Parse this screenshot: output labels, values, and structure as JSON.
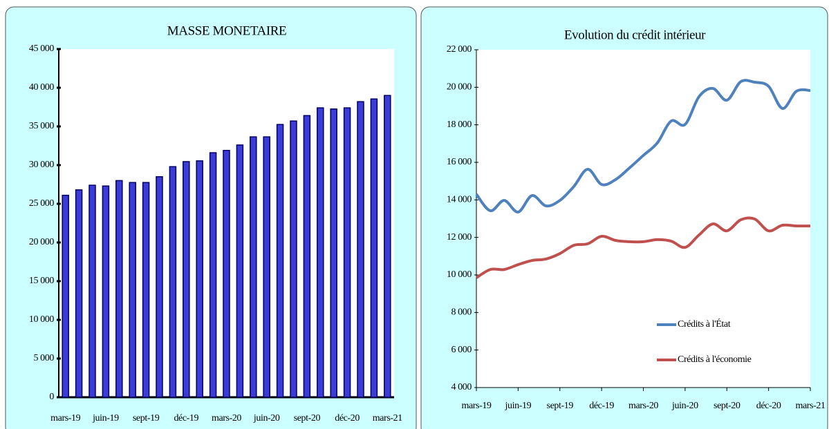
{
  "chart_data": [
    {
      "type": "bar",
      "title": "MASSE MONETAIRE",
      "categories": [
        "mars-19",
        null,
        null,
        "juin-19",
        null,
        null,
        "sept-19",
        null,
        null,
        "déc-19",
        null,
        null,
        "mars-20",
        null,
        null,
        "juin-20",
        null,
        null,
        "sept-20",
        null,
        null,
        "déc-20",
        null,
        null,
        "mars-21"
      ],
      "values": [
        26100,
        26800,
        27400,
        27300,
        28000,
        27750,
        27750,
        28500,
        29800,
        30450,
        30550,
        31600,
        31900,
        32600,
        33650,
        33650,
        35250,
        35700,
        36400,
        37400,
        37250,
        37400,
        38200,
        38550,
        39000
      ],
      "color": "#3b3bd6",
      "ylim": [
        0,
        45000
      ],
      "yticks": [
        0,
        {
          "value": 5000,
          "label": "5 000"
        },
        {
          "value": 10000,
          "label": "10 000"
        },
        {
          "value": 15000,
          "label": "15 000"
        },
        {
          "value": 20000,
          "label": "20 000"
        },
        {
          "value": 25000,
          "label": "25 000"
        },
        {
          "value": 30000,
          "label": "30 000"
        },
        {
          "value": 35000,
          "label": "35 000"
        },
        {
          "value": 40000,
          "label": "40 000"
        },
        {
          "value": 45000,
          "label": "45 000"
        }
      ]
    },
    {
      "type": "line",
      "title": "Evolution du crédit intérieur",
      "categories": [
        "mars-19",
        null,
        null,
        "juin-19",
        null,
        null,
        "sept-19",
        null,
        null,
        "déc-19",
        null,
        null,
        "mars-20",
        null,
        null,
        "juin-20",
        null,
        null,
        "sept-20",
        null,
        null,
        "déc-20",
        null,
        null,
        "mars-21"
      ],
      "series": [
        {
          "name": "Crédits à l'État",
          "color": "#4f81bd",
          "values": [
            14300,
            13420,
            13970,
            13350,
            14230,
            13680,
            13970,
            14710,
            15630,
            14820,
            15080,
            15700,
            16370,
            17030,
            18200,
            18020,
            19500,
            19940,
            19310,
            20300,
            20270,
            20050,
            18870,
            19790,
            19830
          ]
        },
        {
          "name": "Crédits à l'économie",
          "color": "#c0504d",
          "values": [
            9850,
            10290,
            10290,
            10550,
            10770,
            10850,
            11140,
            11580,
            11660,
            12060,
            11840,
            11770,
            11770,
            11880,
            11800,
            11470,
            12130,
            12720,
            12350,
            12940,
            12980,
            12350,
            12650,
            12610,
            12610
          ]
        }
      ],
      "ylim": [
        4000,
        22000
      ],
      "yticks": [
        {
          "value": 4000,
          "label": "4 000"
        },
        {
          "value": 6000,
          "label": "6 000"
        },
        {
          "value": 8000,
          "label": "8 000"
        },
        {
          "value": 10000,
          "label": "10 000"
        },
        {
          "value": 12000,
          "label": "12 000"
        },
        {
          "value": 14000,
          "label": "14 000"
        },
        {
          "value": 16000,
          "label": "16 000"
        },
        {
          "value": 18000,
          "label": "18 000"
        },
        {
          "value": 20000,
          "label": "20 000"
        },
        {
          "value": 22000,
          "label": "22 000"
        }
      ]
    }
  ]
}
